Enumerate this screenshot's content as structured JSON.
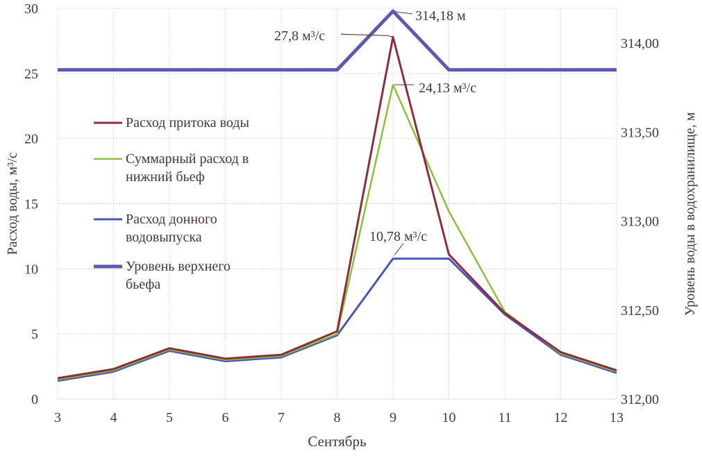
{
  "chart_data": {
    "type": "line",
    "xlabel": "Сентябрь",
    "ylabel": "Расход воды, м³/с",
    "y2label": "Уровень воды в водохранилище, м",
    "x": [
      3,
      4,
      5,
      6,
      7,
      8,
      9,
      10,
      11,
      12,
      13
    ],
    "xlim": [
      3,
      13
    ],
    "ylim": [
      0,
      30
    ],
    "y2lim": [
      312.0,
      314.2
    ],
    "yticks": [
      "0",
      "5",
      "10",
      "15",
      "20",
      "25",
      "30"
    ],
    "y2ticks": [
      "312,00",
      "312,50",
      "313,00",
      "313,50",
      "314,00"
    ],
    "grid": true,
    "legend_placement": "left-middle",
    "series": [
      {
        "name": "Расход притока воды",
        "axis": "left",
        "color": "#8b2e3c",
        "values": [
          1.6,
          2.3,
          3.9,
          3.1,
          3.4,
          5.2,
          27.8,
          11.1,
          6.6,
          3.6,
          2.2
        ]
      },
      {
        "name": "Суммарный расход в нижний бьеф",
        "axis": "left",
        "color": "#8cbf3a",
        "values": [
          1.5,
          2.2,
          3.8,
          3.0,
          3.3,
          5.0,
          24.13,
          14.4,
          6.7,
          3.5,
          2.1
        ]
      },
      {
        "name": "Расход донного водовыпуска",
        "axis": "left",
        "color": "#4a55b8",
        "values": [
          1.4,
          2.1,
          3.7,
          2.9,
          3.2,
          4.9,
          10.78,
          10.78,
          6.5,
          3.4,
          2.0
        ]
      },
      {
        "name": "Уровень верхнего бьефа",
        "axis": "right",
        "color": "#5a5ab0",
        "values": [
          313.85,
          313.85,
          313.85,
          313.85,
          313.85,
          313.85,
          314.18,
          313.85,
          313.85,
          313.85,
          313.85
        ]
      }
    ],
    "legend_lines": [
      [
        "Расход притока воды"
      ],
      [
        "Суммарный расход в",
        "нижний бьеф"
      ],
      [
        "Расход донного",
        "водовыпуска"
      ],
      [
        "Уровень верхнего",
        "бьефа"
      ]
    ],
    "annotations": [
      {
        "text": "27,8 м³/с",
        "x": 9,
        "y": 27.8,
        "axis": "left"
      },
      {
        "text": "24,13 м³/с",
        "x": 9,
        "y": 24.13,
        "axis": "left"
      },
      {
        "text": "10,78 м³/с",
        "x": 9,
        "y": 10.78,
        "axis": "left"
      },
      {
        "text": "314,18 м",
        "x": 9,
        "y": 314.18,
        "axis": "right"
      }
    ]
  }
}
